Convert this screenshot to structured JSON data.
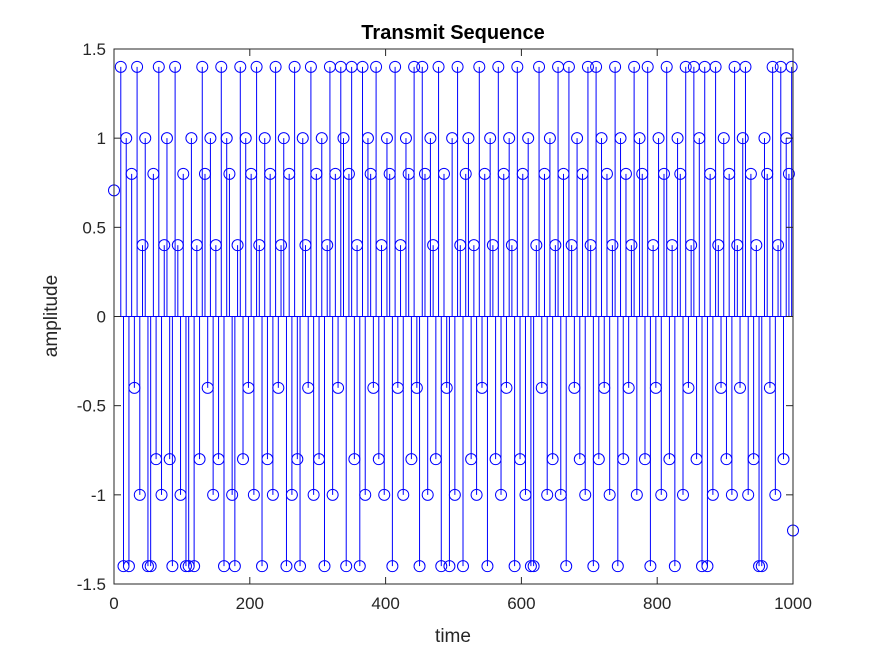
{
  "chart_data": {
    "type": "scatter",
    "style": "stem plot with open circle markers",
    "title": "Transmit Sequence",
    "xlabel": "time",
    "ylabel": "amplitude",
    "xlim": [
      0,
      1000
    ],
    "ylim": [
      -1.5,
      1.5
    ],
    "x_ticks": [
      "0",
      "200",
      "400",
      "600",
      "800",
      "1000"
    ],
    "y_ticks": [
      "-1.5",
      "-1",
      "-0.5",
      "0",
      "0.5",
      "1",
      "1.5"
    ],
    "grid": false,
    "legend": "none",
    "series_color": "#0000FF",
    "amplitude_levels": [
      -1.4,
      -1.0,
      -0.8,
      -0.4,
      0.4,
      0.8,
      1.0,
      1.4
    ],
    "first_point": {
      "x": 0,
      "y": 0.7071
    },
    "last_point": {
      "x": 1000,
      "y": -1.2
    },
    "sample_count": 1001,
    "samples": [
      [
        10,
        1.4
      ],
      [
        14,
        -1.4
      ],
      [
        18,
        1.0
      ],
      [
        22,
        -1.4
      ],
      [
        26,
        0.8
      ],
      [
        30,
        -0.4
      ],
      [
        34,
        1.4
      ],
      [
        38,
        -1.0
      ],
      [
        42,
        0.4
      ],
      [
        46,
        1.0
      ],
      [
        50,
        -1.4
      ],
      [
        54,
        -1.4
      ],
      [
        58,
        0.8
      ],
      [
        62,
        -0.8
      ],
      [
        66,
        1.4
      ],
      [
        70,
        -1.0
      ],
      [
        74,
        0.4
      ],
      [
        78,
        1.0
      ],
      [
        82,
        -0.8
      ],
      [
        86,
        -1.4
      ],
      [
        90,
        1.4
      ],
      [
        94,
        0.4
      ],
      [
        98,
        -1.0
      ],
      [
        102,
        0.8
      ],
      [
        106,
        -1.4
      ],
      [
        110,
        -1.4
      ],
      [
        114,
        1.0
      ],
      [
        118,
        -1.4
      ],
      [
        122,
        0.4
      ],
      [
        126,
        -0.8
      ],
      [
        130,
        1.4
      ],
      [
        134,
        0.8
      ],
      [
        138,
        -0.4
      ],
      [
        142,
        1.0
      ],
      [
        146,
        -1.0
      ],
      [
        150,
        0.4
      ],
      [
        154,
        -0.8
      ],
      [
        158,
        1.4
      ],
      [
        162,
        -1.4
      ],
      [
        166,
        1.0
      ],
      [
        170,
        0.8
      ],
      [
        174,
        -1.0
      ],
      [
        178,
        -1.4
      ],
      [
        182,
        0.4
      ],
      [
        186,
        1.4
      ],
      [
        190,
        -0.8
      ],
      [
        194,
        1.0
      ],
      [
        198,
        -0.4
      ],
      [
        202,
        0.8
      ],
      [
        206,
        -1.0
      ],
      [
        210,
        1.4
      ],
      [
        214,
        0.4
      ],
      [
        218,
        -1.4
      ],
      [
        222,
        1.0
      ],
      [
        226,
        -0.8
      ],
      [
        230,
        0.8
      ],
      [
        234,
        -1.0
      ],
      [
        238,
        1.4
      ],
      [
        242,
        -0.4
      ],
      [
        246,
        0.4
      ],
      [
        250,
        1.0
      ],
      [
        254,
        -1.4
      ],
      [
        258,
        0.8
      ],
      [
        262,
        -1.0
      ],
      [
        266,
        1.4
      ],
      [
        270,
        -0.8
      ],
      [
        274,
        -1.4
      ],
      [
        278,
        1.0
      ],
      [
        282,
        0.4
      ],
      [
        286,
        -0.4
      ],
      [
        290,
        1.4
      ],
      [
        294,
        -1.0
      ],
      [
        298,
        0.8
      ],
      [
        302,
        -0.8
      ],
      [
        306,
        1.0
      ],
      [
        310,
        -1.4
      ],
      [
        314,
        0.4
      ],
      [
        318,
        1.4
      ],
      [
        322,
        -1.0
      ],
      [
        326,
        0.8
      ],
      [
        330,
        -0.4
      ],
      [
        334,
        1.4
      ],
      [
        338,
        1.0
      ],
      [
        342,
        -1.4
      ],
      [
        346,
        0.8
      ],
      [
        350,
        1.4
      ],
      [
        354,
        -0.8
      ],
      [
        358,
        0.4
      ],
      [
        362,
        -1.4
      ],
      [
        366,
        1.4
      ],
      [
        370,
        -1.0
      ],
      [
        374,
        1.0
      ],
      [
        378,
        0.8
      ],
      [
        382,
        -0.4
      ],
      [
        386,
        1.4
      ],
      [
        390,
        -0.8
      ],
      [
        394,
        0.4
      ],
      [
        398,
        -1.0
      ],
      [
        402,
        1.0
      ],
      [
        406,
        0.8
      ],
      [
        410,
        -1.4
      ],
      [
        414,
        1.4
      ],
      [
        418,
        -0.4
      ],
      [
        422,
        0.4
      ],
      [
        426,
        -1.0
      ],
      [
        430,
        1.0
      ],
      [
        434,
        0.8
      ],
      [
        438,
        -0.8
      ],
      [
        442,
        1.4
      ],
      [
        446,
        -0.4
      ],
      [
        450,
        -1.4
      ],
      [
        454,
        1.4
      ],
      [
        458,
        0.8
      ],
      [
        462,
        -1.0
      ],
      [
        466,
        1.0
      ],
      [
        470,
        0.4
      ],
      [
        474,
        -0.8
      ],
      [
        478,
        1.4
      ],
      [
        482,
        -1.4
      ],
      [
        486,
        0.8
      ],
      [
        490,
        -0.4
      ],
      [
        494,
        -1.4
      ],
      [
        498,
        1.0
      ],
      [
        502,
        -1.0
      ],
      [
        506,
        1.4
      ],
      [
        510,
        0.4
      ],
      [
        514,
        -1.4
      ],
      [
        518,
        0.8
      ],
      [
        522,
        1.0
      ],
      [
        526,
        -0.8
      ],
      [
        530,
        0.4
      ],
      [
        534,
        -1.0
      ],
      [
        538,
        1.4
      ],
      [
        542,
        -0.4
      ],
      [
        546,
        0.8
      ],
      [
        550,
        -1.4
      ],
      [
        554,
        1.0
      ],
      [
        558,
        0.4
      ],
      [
        562,
        -0.8
      ],
      [
        566,
        1.4
      ],
      [
        570,
        -1.0
      ],
      [
        574,
        0.8
      ],
      [
        578,
        -0.4
      ],
      [
        582,
        1.0
      ],
      [
        586,
        0.4
      ],
      [
        590,
        -1.4
      ],
      [
        594,
        1.4
      ],
      [
        598,
        -0.8
      ],
      [
        602,
        0.8
      ],
      [
        606,
        -1.0
      ],
      [
        610,
        1.0
      ],
      [
        614,
        -1.4
      ],
      [
        618,
        -1.4
      ],
      [
        622,
        0.4
      ],
      [
        626,
        1.4
      ],
      [
        630,
        -0.4
      ],
      [
        634,
        0.8
      ],
      [
        638,
        -1.0
      ],
      [
        642,
        1.0
      ],
      [
        646,
        -0.8
      ],
      [
        650,
        0.4
      ],
      [
        654,
        1.4
      ],
      [
        658,
        -1.0
      ],
      [
        662,
        0.8
      ],
      [
        666,
        -1.4
      ],
      [
        670,
        1.4
      ],
      [
        674,
        0.4
      ],
      [
        678,
        -0.4
      ],
      [
        682,
        1.0
      ],
      [
        686,
        -0.8
      ],
      [
        690,
        0.8
      ],
      [
        694,
        -1.0
      ],
      [
        698,
        1.4
      ],
      [
        702,
        0.4
      ],
      [
        706,
        -1.4
      ],
      [
        710,
        1.4
      ],
      [
        714,
        -0.8
      ],
      [
        718,
        1.0
      ],
      [
        722,
        -0.4
      ],
      [
        726,
        0.8
      ],
      [
        730,
        -1.0
      ],
      [
        734,
        0.4
      ],
      [
        738,
        1.4
      ],
      [
        742,
        -1.4
      ],
      [
        746,
        1.0
      ],
      [
        750,
        -0.8
      ],
      [
        754,
        0.8
      ],
      [
        758,
        -0.4
      ],
      [
        762,
        0.4
      ],
      [
        766,
        1.4
      ],
      [
        770,
        -1.0
      ],
      [
        774,
        1.0
      ],
      [
        778,
        0.8
      ],
      [
        782,
        -0.8
      ],
      [
        786,
        1.4
      ],
      [
        790,
        -1.4
      ],
      [
        794,
        0.4
      ],
      [
        798,
        -0.4
      ],
      [
        802,
        1.0
      ],
      [
        806,
        -1.0
      ],
      [
        810,
        0.8
      ],
      [
        814,
        1.4
      ],
      [
        818,
        -0.8
      ],
      [
        822,
        0.4
      ],
      [
        826,
        -1.4
      ],
      [
        830,
        1.0
      ],
      [
        834,
        0.8
      ],
      [
        838,
        -1.0
      ],
      [
        842,
        1.4
      ],
      [
        846,
        -0.4
      ],
      [
        850,
        0.4
      ],
      [
        854,
        1.4
      ],
      [
        858,
        -0.8
      ],
      [
        862,
        1.0
      ],
      [
        866,
        -1.4
      ],
      [
        870,
        1.4
      ],
      [
        874,
        -1.4
      ],
      [
        878,
        0.8
      ],
      [
        882,
        -1.0
      ],
      [
        886,
        1.4
      ],
      [
        890,
        0.4
      ],
      [
        894,
        -0.4
      ],
      [
        898,
        1.0
      ],
      [
        902,
        -0.8
      ],
      [
        906,
        0.8
      ],
      [
        910,
        -1.0
      ],
      [
        914,
        1.4
      ],
      [
        918,
        0.4
      ],
      [
        922,
        -0.4
      ],
      [
        926,
        1.0
      ],
      [
        930,
        1.4
      ],
      [
        934,
        -1.0
      ],
      [
        938,
        0.8
      ],
      [
        942,
        -0.8
      ],
      [
        946,
        0.4
      ],
      [
        950,
        -1.4
      ],
      [
        954,
        -1.4
      ],
      [
        958,
        1.0
      ],
      [
        962,
        0.8
      ],
      [
        966,
        -0.4
      ],
      [
        970,
        1.4
      ],
      [
        974,
        -1.0
      ],
      [
        978,
        0.4
      ],
      [
        982,
        1.4
      ],
      [
        986,
        -0.8
      ],
      [
        990,
        1.0
      ],
      [
        994,
        0.8
      ],
      [
        998,
        1.4
      ]
    ]
  }
}
